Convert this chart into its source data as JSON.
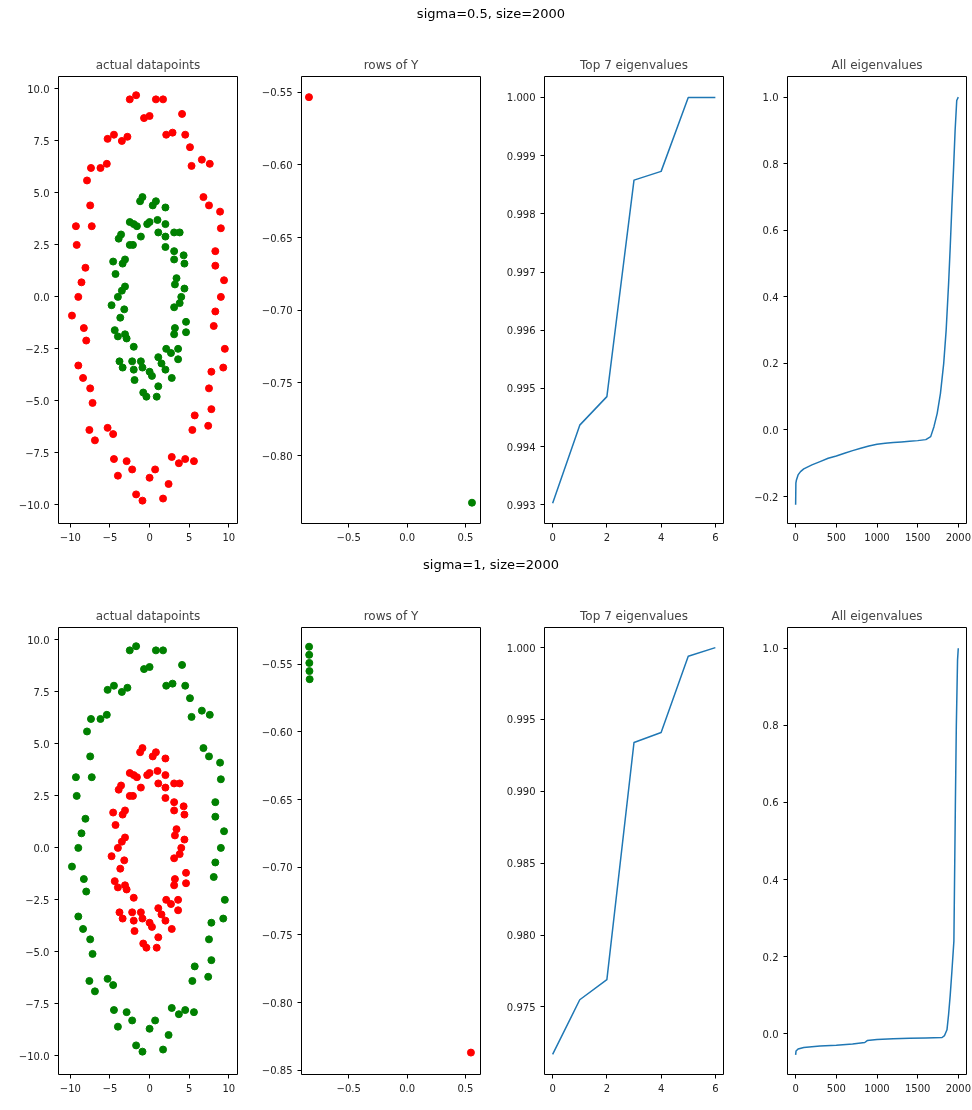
{
  "chart_data": [
    {
      "type": "scatter",
      "title": "actual datapoints",
      "annotations": [
        "sigma=0.5, size=2000"
      ],
      "marker": "circle",
      "grid": false,
      "xlim": [
        -11.5,
        11.1
      ],
      "ylim": [
        -10.9,
        10.6
      ],
      "xticks": [
        {
          "value": -10,
          "label": "−10"
        },
        {
          "value": -5,
          "label": "−5"
        },
        0,
        5,
        10
      ],
      "yticks": [
        {
          "value": -10,
          "label": "−10.0"
        },
        {
          "value": -7.5,
          "label": "−7.5"
        },
        {
          "value": -5,
          "label": "−5.0"
        },
        {
          "value": -2.5,
          "label": "−2.5"
        },
        {
          "value": 0,
          "label": "0.0"
        },
        {
          "value": 2.5,
          "label": "2.5"
        },
        {
          "value": 5,
          "label": "5.0"
        },
        {
          "value": 7.5,
          "label": "7.5"
        },
        {
          "value": 10,
          "label": "10.0"
        }
      ],
      "series": [
        {
          "color": "#ff0000",
          "x": [
            9.0,
            8.3,
            9.0,
            7.5,
            7.6,
            5.3,
            4.5,
            2.9,
            1.7,
            0.0,
            -1.7,
            -2.8,
            -4.5,
            -5.4,
            -7.4,
            -7.5,
            -9.3,
            -8.1,
            -9.0,
            -8.3,
            -9.0,
            -7.5,
            -7.6,
            -5.3,
            -4.5,
            -2.9,
            -1.7,
            0.0,
            1.7,
            2.8,
            4.5,
            5.4,
            7.4,
            7.5,
            9.3,
            8.1,
            9.4,
            8.3,
            8.9,
            6.8,
            6.6,
            5.1,
            4.1,
            2.1,
            0.8,
            -0.7,
            -2.5,
            -3.5,
            -5.3,
            -6.2,
            -7.9,
            -7.3,
            -9.2,
            -8.6,
            -9.8,
            -8.0,
            -8.4,
            -7.2,
            -6.9,
            -4.6,
            -4.0,
            -2.2,
            -0.9,
            0.7,
            2.4,
            3.7,
            5.6,
            5.7,
            7.8,
            7.8,
            9.5,
            8.3
          ],
          "values": [
            0.0,
            1.5,
            3.3,
            4.4,
            6.4,
            6.3,
            7.8,
            7.9,
            9.5,
            8.7,
            9.7,
            7.7,
            7.8,
            6.4,
            6.2,
            4.4,
            3.4,
            1.4,
            0.0,
            -1.5,
            -3.3,
            -4.4,
            -6.4,
            -6.3,
            -7.8,
            -7.9,
            -9.5,
            -8.7,
            -9.7,
            -7.7,
            -7.8,
            -6.4,
            -6.2,
            -4.4,
            -3.4,
            -1.4,
            0.8,
            2.2,
            4.1,
            4.8,
            6.6,
            7.2,
            8.8,
            7.8,
            9.5,
            8.6,
            9.5,
            7.5,
            7.6,
            6.2,
            5.6,
            3.4,
            2.5,
            0.7,
            -0.9,
            -2.1,
            -3.9,
            -5.1,
            -6.9,
            -6.6,
            -8.6,
            -8.3,
            -9.8,
            -8.3,
            -9.0,
            -8.0,
            -7.9,
            -5.7,
            -5.4,
            -3.6,
            -2.5,
            -0.7
          ]
        },
        {
          "color": "#008000",
          "x": [
            4.0,
            3.2,
            4.4,
            3.1,
            3.8,
            2.0,
            2.0,
            1.1,
            0.8,
            0.0,
            -0.9,
            -1.1,
            -2.0,
            -2.1,
            -3.6,
            -3.1,
            -4.6,
            -3.1,
            -4.0,
            -3.2,
            -4.4,
            -3.1,
            -3.8,
            -2.0,
            -2.0,
            -1.1,
            -0.8,
            0.0,
            0.9,
            1.1,
            2.0,
            2.1,
            3.6,
            3.1,
            4.6,
            3.1,
            4.4,
            3.4,
            4.3,
            3.1,
            3.1,
            2.0,
            2.0,
            1.0,
            0.4,
            -0.3,
            -1.2,
            -1.6,
            -2.5,
            -2.5,
            -3.9,
            -3.4,
            -4.3,
            -3.5,
            -4.8,
            -3.7,
            -4.0,
            -2.9,
            -3.4,
            -2.2,
            -1.9,
            -0.9,
            -0.4,
            0.3,
            1.1,
            1.5,
            2.8,
            2.7,
            3.6,
            3.2,
            4.6,
            3.8
          ],
          "values": [
            0.0,
            0.6,
            1.6,
            1.8,
            3.1,
            2.4,
            3.5,
            3.1,
            4.6,
            3.6,
            4.8,
            2.9,
            3.5,
            2.5,
            3.0,
            1.8,
            1.7,
            0.5,
            0.0,
            -0.6,
            -1.6,
            -1.8,
            -3.1,
            -2.4,
            -3.5,
            -3.1,
            -4.6,
            -3.6,
            -4.8,
            -2.9,
            -3.5,
            -2.5,
            -3.0,
            -1.8,
            -1.7,
            -0.5,
            0.4,
            0.9,
            2.0,
            2.2,
            3.1,
            2.9,
            4.3,
            3.7,
            4.4,
            3.5,
            4.6,
            3.4,
            3.6,
            2.5,
            2.8,
            1.6,
            1.1,
            0.3,
            -0.4,
            -1.0,
            -1.9,
            -2.0,
            -3.4,
            -3.1,
            -4.0,
            -3.4,
            -4.8,
            -3.8,
            -4.3,
            -3.2,
            -3.9,
            -2.7,
            -2.5,
            -1.5,
            -1.2,
            -0.3
          ]
        }
      ]
    },
    {
      "type": "scatter",
      "title": "rows of Y",
      "marker": "circle",
      "grid": false,
      "xlim": [
        -0.905,
        0.629
      ],
      "ylim": [
        -0.8467,
        -0.5392
      ],
      "xticks": [
        {
          "value": -0.5,
          "label": "−0.5"
        },
        {
          "value": 0,
          "label": "0.0"
        },
        {
          "value": 0.5,
          "label": "0.5"
        }
      ],
      "yticks": [
        {
          "value": -0.8,
          "label": "−0.80"
        },
        {
          "value": -0.75,
          "label": "−0.75"
        },
        {
          "value": -0.7,
          "label": "−0.70"
        },
        {
          "value": -0.65,
          "label": "−0.65"
        },
        {
          "value": -0.6,
          "label": "−0.60"
        },
        {
          "value": -0.55,
          "label": "−0.55"
        }
      ],
      "series": [
        {
          "color": "#ff0000",
          "x": [
            -0.841
          ],
          "values": [
            -0.5534
          ]
        },
        {
          "color": "#008000",
          "x": [
            0.556
          ],
          "values": [
            -0.8324
          ]
        }
      ]
    },
    {
      "type": "line",
      "title": "Top 7 eigenvalues",
      "grid": false,
      "marker": "none",
      "xlim": [
        -0.3,
        6.3
      ],
      "ylim": [
        0.99268,
        1.00036
      ],
      "xticks": [
        0,
        2,
        4,
        6
      ],
      "yticks": [
        0.993,
        0.994,
        0.995,
        0.996,
        0.997,
        0.998,
        0.999,
        {
          "value": 1.0,
          "label": "1.000"
        }
      ],
      "series": [
        {
          "color": "#1f77b4",
          "x": [
            0,
            1,
            2,
            3,
            4,
            5,
            6
          ],
          "values": [
            0.99303,
            0.99437,
            0.99486,
            0.99858,
            0.99873,
            1.0,
            1.0
          ]
        }
      ]
    },
    {
      "type": "line",
      "title": "All eigenvalues",
      "grid": false,
      "marker": "none",
      "xlim": [
        -100,
        2100
      ],
      "ylim": [
        -0.281,
        1.062
      ],
      "xticks": [
        0,
        500,
        1000,
        1500,
        2000
      ],
      "yticks": [
        {
          "value": -0.2,
          "label": "−0.2"
        },
        {
          "value": 0,
          "label": "0.0"
        },
        0.2,
        0.4,
        0.6,
        0.8,
        {
          "value": 1,
          "label": "1.0"
        }
      ],
      "series": [
        {
          "color": "#1f77b4",
          "x": [
            0,
            3,
            10,
            30,
            60,
            100,
            200,
            300,
            400,
            500,
            600,
            700,
            800,
            900,
            1000,
            1100,
            1200,
            1300,
            1400,
            1500,
            1600,
            1640,
            1660,
            1700,
            1740,
            1780,
            1820,
            1850,
            1880,
            1900,
            1920,
            1940,
            1960,
            1980,
            1999
          ],
          "values": [
            -0.225,
            -0.16,
            -0.15,
            -0.135,
            -0.125,
            -0.117,
            -0.105,
            -0.095,
            -0.085,
            -0.078,
            -0.07,
            -0.062,
            -0.055,
            -0.048,
            -0.043,
            -0.04,
            -0.038,
            -0.036,
            -0.034,
            -0.032,
            -0.029,
            -0.023,
            -0.02,
            0.01,
            0.05,
            0.11,
            0.2,
            0.3,
            0.44,
            0.55,
            0.67,
            0.78,
            0.9,
            0.99,
            1.0
          ]
        }
      ]
    },
    {
      "type": "scatter",
      "title": "actual datapoints",
      "annotations": [
        "sigma=1, size=2000"
      ],
      "marker": "circle",
      "grid": false,
      "xlim": [
        -11.5,
        11.1
      ],
      "ylim": [
        -10.9,
        10.6
      ],
      "xticks": [
        {
          "value": -10,
          "label": "−10"
        },
        {
          "value": -5,
          "label": "−5"
        },
        0,
        5,
        10
      ],
      "yticks": [
        {
          "value": -10,
          "label": "−10.0"
        },
        {
          "value": -7.5,
          "label": "−7.5"
        },
        {
          "value": -5,
          "label": "−5.0"
        },
        {
          "value": -2.5,
          "label": "−2.5"
        },
        {
          "value": 0,
          "label": "0.0"
        },
        {
          "value": 2.5,
          "label": "2.5"
        },
        {
          "value": 5,
          "label": "5.0"
        },
        {
          "value": 7.5,
          "label": "7.5"
        },
        {
          "value": 10,
          "label": "10.0"
        }
      ],
      "series": [
        {
          "color": "#008000",
          "x": [
            9.0,
            8.3,
            9.0,
            7.5,
            7.6,
            5.3,
            4.5,
            2.9,
            1.7,
            0.0,
            -1.7,
            -2.8,
            -4.5,
            -5.4,
            -7.4,
            -7.5,
            -9.3,
            -8.1,
            -9.0,
            -8.3,
            -9.0,
            -7.5,
            -7.6,
            -5.3,
            -4.5,
            -2.9,
            -1.7,
            0.0,
            1.7,
            2.8,
            4.5,
            5.4,
            7.4,
            7.5,
            9.3,
            8.1,
            9.4,
            8.3,
            8.9,
            6.8,
            6.6,
            5.1,
            4.1,
            2.1,
            0.8,
            -0.7,
            -2.5,
            -3.5,
            -5.3,
            -6.2,
            -7.9,
            -7.3,
            -9.2,
            -8.6,
            -9.8,
            -8.0,
            -8.4,
            -7.2,
            -6.9,
            -4.6,
            -4.0,
            -2.2,
            -0.9,
            0.7,
            2.4,
            3.7,
            5.6,
            5.7,
            7.8,
            7.8,
            9.5,
            8.3
          ],
          "values": [
            0.0,
            1.5,
            3.3,
            4.4,
            6.4,
            6.3,
            7.8,
            7.9,
            9.5,
            8.7,
            9.7,
            7.7,
            7.8,
            6.4,
            6.2,
            4.4,
            3.4,
            1.4,
            0.0,
            -1.5,
            -3.3,
            -4.4,
            -6.4,
            -6.3,
            -7.8,
            -7.9,
            -9.5,
            -8.7,
            -9.7,
            -7.7,
            -7.8,
            -6.4,
            -6.2,
            -4.4,
            -3.4,
            -1.4,
            0.8,
            2.2,
            4.1,
            4.8,
            6.6,
            7.2,
            8.8,
            7.8,
            9.5,
            8.6,
            9.5,
            7.5,
            7.6,
            6.2,
            5.6,
            3.4,
            2.5,
            0.7,
            -0.9,
            -2.1,
            -3.9,
            -5.1,
            -6.9,
            -6.6,
            -8.6,
            -8.3,
            -9.8,
            -8.3,
            -9.0,
            -8.0,
            -7.9,
            -5.7,
            -5.4,
            -3.6,
            -2.5,
            -0.7
          ]
        },
        {
          "color": "#ff0000",
          "x": [
            4.0,
            3.2,
            4.4,
            3.1,
            3.8,
            2.0,
            2.0,
            1.1,
            0.8,
            0.0,
            -0.9,
            -1.1,
            -2.0,
            -2.1,
            -3.6,
            -3.1,
            -4.6,
            -3.1,
            -4.0,
            -3.2,
            -4.4,
            -3.1,
            -3.8,
            -2.0,
            -2.0,
            -1.1,
            -0.8,
            0.0,
            0.9,
            1.1,
            2.0,
            2.1,
            3.6,
            3.1,
            4.6,
            3.1,
            4.4,
            3.4,
            4.3,
            3.1,
            3.1,
            2.0,
            2.0,
            1.0,
            0.4,
            -0.3,
            -1.2,
            -1.6,
            -2.5,
            -2.5,
            -3.9,
            -3.4,
            -4.3,
            -3.5,
            -4.8,
            -3.7,
            -4.0,
            -2.9,
            -3.4,
            -2.2,
            -1.9,
            -0.9,
            -0.4,
            0.3,
            1.1,
            1.5,
            2.8,
            2.7,
            3.6,
            3.2,
            4.6,
            3.8
          ],
          "values": [
            0.0,
            0.6,
            1.6,
            1.8,
            3.1,
            2.4,
            3.5,
            3.1,
            4.6,
            3.6,
            4.8,
            2.9,
            3.5,
            2.5,
            3.0,
            1.8,
            1.7,
            0.5,
            0.0,
            -0.6,
            -1.6,
            -1.8,
            -3.1,
            -2.4,
            -3.5,
            -3.1,
            -4.6,
            -3.6,
            -4.8,
            -2.9,
            -3.5,
            -2.5,
            -3.0,
            -1.8,
            -1.7,
            -0.5,
            0.4,
            0.9,
            2.0,
            2.2,
            3.1,
            2.9,
            4.3,
            3.7,
            4.4,
            3.5,
            4.6,
            3.4,
            3.6,
            2.5,
            2.8,
            1.6,
            1.1,
            0.3,
            -0.4,
            -1.0,
            -1.9,
            -2.0,
            -3.4,
            -3.1,
            -4.0,
            -3.4,
            -4.8,
            -3.8,
            -4.3,
            -3.2,
            -3.9,
            -2.7,
            -2.5,
            -1.5,
            -1.2,
            -0.3
          ]
        }
      ]
    },
    {
      "type": "scatter",
      "title": "rows of Y",
      "marker": "circle",
      "grid": false,
      "xlim": [
        -0.905,
        0.629
      ],
      "ylim": [
        -0.8532,
        -0.5228
      ],
      "xticks": [
        {
          "value": -0.5,
          "label": "−0.5"
        },
        {
          "value": 0,
          "label": "0.0"
        },
        {
          "value": 0.5,
          "label": "0.5"
        }
      ],
      "yticks": [
        {
          "value": -0.85,
          "label": "−0.85"
        },
        {
          "value": -0.8,
          "label": "−0.80"
        },
        {
          "value": -0.75,
          "label": "−0.75"
        },
        {
          "value": -0.7,
          "label": "−0.70"
        },
        {
          "value": -0.65,
          "label": "−0.65"
        },
        {
          "value": -0.6,
          "label": "−0.60"
        },
        {
          "value": -0.55,
          "label": "−0.55"
        }
      ],
      "series": [
        {
          "color": "#008000",
          "x": [
            -0.84,
            -0.839,
            -0.838,
            -0.837,
            -0.835
          ],
          "values": [
            -0.537,
            -0.543,
            -0.549,
            -0.555,
            -0.561
          ]
        },
        {
          "color": "#ff0000",
          "x": [
            0.547
          ],
          "values": [
            -0.837
          ]
        }
      ]
    },
    {
      "type": "line",
      "title": "Top 7 eigenvalues",
      "grid": false,
      "marker": "none",
      "xlim": [
        -0.3,
        6.3
      ],
      "ylim": [
        0.9703,
        1.0014
      ],
      "xticks": [
        0,
        2,
        4,
        6
      ],
      "yticks": [
        0.975,
        {
          "value": 0.98,
          "label": "0.980"
        },
        0.985,
        {
          "value": 0.99,
          "label": "0.990"
        },
        0.995,
        {
          "value": 1.0,
          "label": "1.000"
        }
      ],
      "series": [
        {
          "color": "#1f77b4",
          "x": [
            0,
            1,
            2,
            3,
            4,
            5,
            6
          ],
          "values": [
            0.9717,
            0.9755,
            0.9769,
            0.9934,
            0.9941,
            0.9994,
            1.0
          ]
        }
      ]
    },
    {
      "type": "line",
      "title": "All eigenvalues",
      "grid": false,
      "marker": "none",
      "xlim": [
        -100,
        2100
      ],
      "ylim": [
        -0.106,
        1.054
      ],
      "xticks": [
        0,
        500,
        1000,
        1500,
        2000
      ],
      "yticks": [
        {
          "value": 0,
          "label": "0.0"
        },
        0.2,
        0.4,
        0.6,
        0.8,
        {
          "value": 1,
          "label": "1.0"
        }
      ],
      "series": [
        {
          "color": "#1f77b4",
          "x": [
            0,
            5,
            30,
            100,
            300,
            500,
            700,
            850,
            880,
            1000,
            1200,
            1400,
            1600,
            1800,
            1830,
            1860,
            1880,
            1900,
            1920,
            1945,
            1963,
            1975,
            1990,
            1999
          ],
          "values": [
            -0.055,
            -0.045,
            -0.04,
            -0.036,
            -0.032,
            -0.03,
            -0.027,
            -0.023,
            -0.018,
            -0.015,
            -0.013,
            -0.012,
            -0.011,
            -0.01,
            -0.005,
            0.01,
            0.05,
            0.1,
            0.16,
            0.24,
            0.59,
            0.8,
            0.97,
            1.0
          ]
        }
      ]
    }
  ]
}
